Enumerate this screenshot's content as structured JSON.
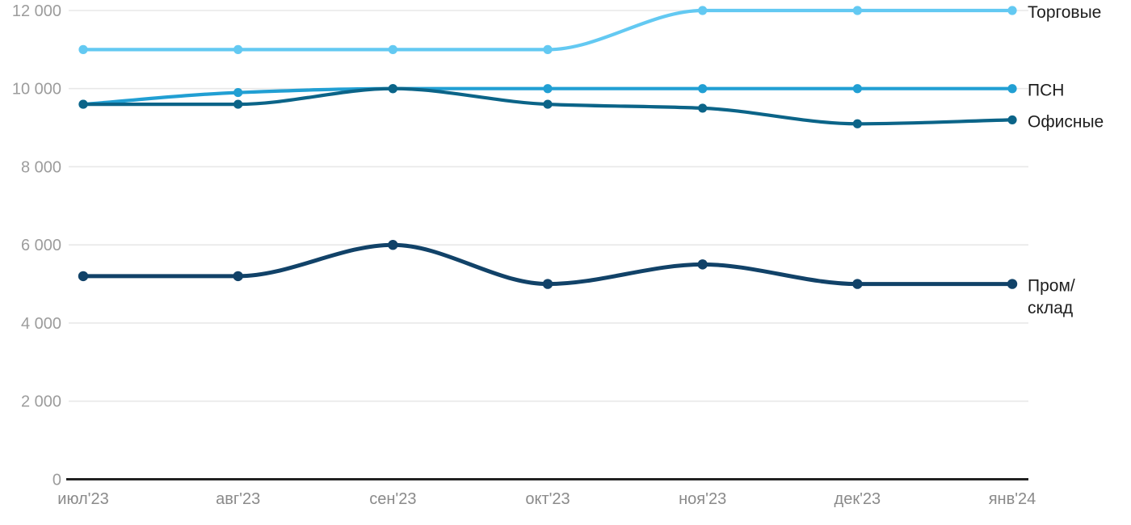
{
  "chart_data": {
    "type": "line",
    "title": "",
    "xlabel": "",
    "ylabel": "",
    "x": [
      "июл'23",
      "авг'23",
      "сен'23",
      "окт'23",
      "ноя'23",
      "дек'23",
      "янв'24"
    ],
    "series": [
      {
        "name": "Торговые",
        "color": "#63c9f2",
        "line_width": 4.2,
        "dot_radius": 5.6,
        "values": [
          11000,
          11000,
          11000,
          11000,
          12000,
          12000,
          12000
        ],
        "label_lines": [
          "Торговые"
        ]
      },
      {
        "name": "ПСН",
        "color": "#219fd3",
        "line_width": 4.2,
        "dot_radius": 5.6,
        "values": [
          9600,
          9900,
          10000,
          10000,
          10000,
          10000,
          10000
        ],
        "label_lines": [
          "ПСН"
        ]
      },
      {
        "name": "Офисные",
        "color": "#0b6488",
        "line_width": 4.2,
        "dot_radius": 5.6,
        "values": [
          9600,
          9600,
          10000,
          9600,
          9500,
          9100,
          9200
        ],
        "label_lines": [
          "Офисные"
        ]
      },
      {
        "name": "Пром/склад",
        "color": "#114268",
        "line_width": 5.0,
        "dot_radius": 6.2,
        "values": [
          5200,
          5200,
          6000,
          5000,
          5500,
          5000,
          5000
        ],
        "label_lines": [
          "Пром/",
          "склад"
        ]
      }
    ],
    "ylim": [
      0,
      12000
    ],
    "y_ticks": [
      0,
      2000,
      4000,
      6000,
      8000,
      10000,
      12000
    ],
    "y_tick_labels": [
      "0",
      "2 000",
      "4 000",
      "6 000",
      "8 000",
      "10 000",
      "12 000"
    ],
    "grid": "horizontal",
    "legend_position": "right",
    "curve": "smooth-monotone"
  },
  "colors": {
    "background": "#ffffff",
    "gridline": "#e8e8e8",
    "axis": "#141414",
    "y_tick_text": "#9c9c9c",
    "x_tick_text": "#8a8a8a",
    "series_label_text": "#1e1e1e"
  }
}
